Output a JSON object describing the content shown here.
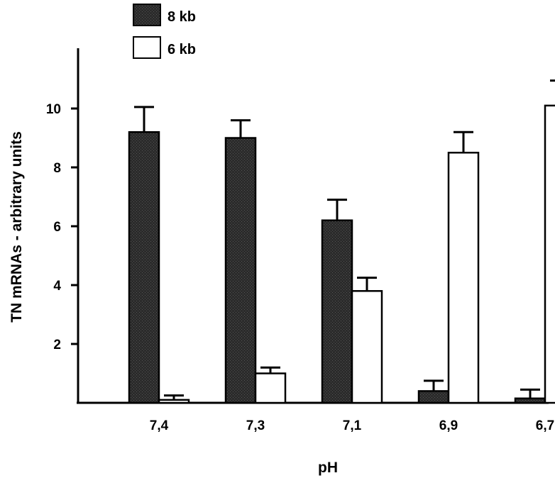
{
  "chart_data": {
    "type": "bar",
    "xlabel": "pH",
    "ylabel": "TN mRNAs - arbitrary units",
    "categories": [
      "7,4",
      "7,3",
      "7,1",
      "6,9",
      "6,7"
    ],
    "yticks": [
      "2",
      "4",
      "6",
      "8",
      "10"
    ],
    "ylim": [
      0,
      12
    ],
    "grid": false,
    "legend_position": "top-left",
    "series": [
      {
        "name": "8 kb",
        "color": "#2b2b2b",
        "values": [
          9.2,
          9.0,
          6.2,
          0.4,
          0.15
        ],
        "errors": [
          0.85,
          0.6,
          0.7,
          0.35,
          0.3
        ]
      },
      {
        "name": "6 kb",
        "color": "#ffffff",
        "values": [
          0.1,
          1.0,
          3.8,
          8.5,
          10.1
        ],
        "errors": [
          0.15,
          0.2,
          0.45,
          0.7,
          0.85
        ]
      }
    ]
  }
}
